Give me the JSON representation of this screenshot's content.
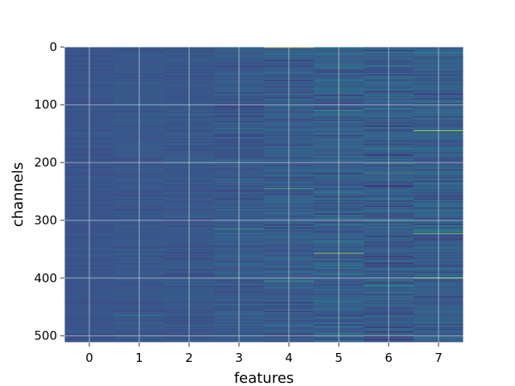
{
  "chart_data": {
    "type": "heatmap",
    "title": "",
    "xlabel": "features",
    "ylabel": "channels",
    "x_categories": [
      "0",
      "1",
      "2",
      "3",
      "4",
      "5",
      "6",
      "7"
    ],
    "y_ticks": [
      0,
      100,
      200,
      300,
      400,
      500
    ],
    "y_range": [
      0,
      511
    ],
    "n_rows": 512,
    "y_inverted": true,
    "grid": true,
    "colormap": "viridis",
    "colors": {
      "grid": "#e6e6e6",
      "background": "#ffffff"
    },
    "column_spread": [
      0.05,
      0.07,
      0.09,
      0.13,
      0.16,
      0.2,
      0.21,
      0.21
    ],
    "column_base": [
      0.26,
      0.27,
      0.27,
      0.28,
      0.29,
      0.3,
      0.29,
      0.3
    ],
    "highlights": [
      {
        "feature": 4,
        "channel": 1,
        "value": 0.95
      },
      {
        "feature": 4,
        "channel": 245,
        "value": 0.65
      },
      {
        "feature": 4,
        "channel": 405,
        "value": 0.6
      },
      {
        "feature": 3,
        "channel": 315,
        "value": 0.6
      },
      {
        "feature": 5,
        "channel": 357,
        "value": 0.9
      },
      {
        "feature": 5,
        "channel": 110,
        "value": 0.55
      },
      {
        "feature": 6,
        "channel": 88,
        "value": 0.55
      },
      {
        "feature": 6,
        "channel": 218,
        "value": 0.6
      },
      {
        "feature": 7,
        "channel": 145,
        "value": 0.95
      },
      {
        "feature": 7,
        "channel": 323,
        "value": 0.8
      },
      {
        "feature": 7,
        "channel": 399,
        "value": 0.7
      },
      {
        "feature": 2,
        "channel": 200,
        "value": 0.55
      },
      {
        "feature": 1,
        "channel": 465,
        "value": 0.5
      }
    ]
  }
}
